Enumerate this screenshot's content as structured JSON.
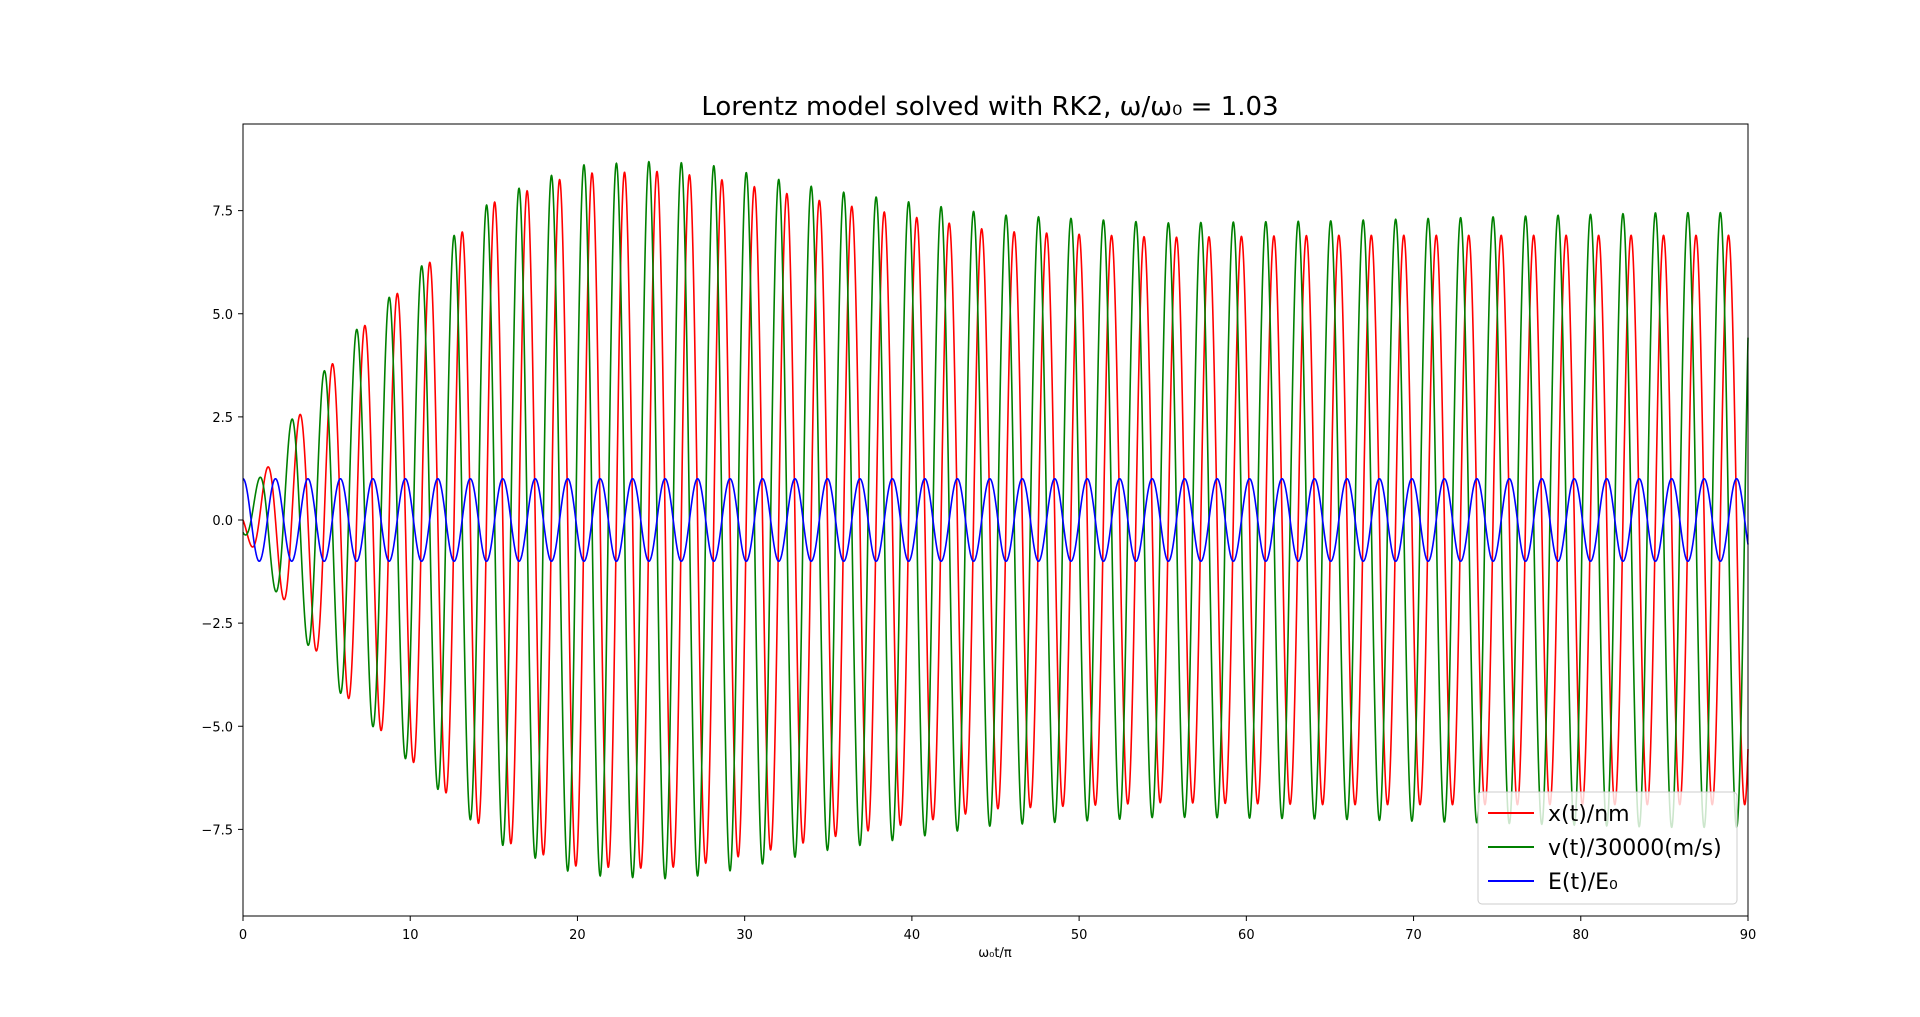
{
  "chart_data": {
    "type": "line",
    "title": "Lorentz model solved with RK2, ω/ω₀ = 1.03",
    "xlabel": "ω₀t/π",
    "ylabel": "",
    "xlim": [
      0,
      90
    ],
    "ylim": [
      -9.6,
      9.6
    ],
    "x_ticks": [
      0,
      10,
      20,
      30,
      40,
      50,
      60,
      70,
      80,
      90
    ],
    "x_tick_labels": [
      "0",
      "10",
      "20",
      "30",
      "40",
      "50",
      "60",
      "70",
      "80",
      "90"
    ],
    "y_ticks": [
      -7.5,
      -5.0,
      -2.5,
      0.0,
      2.5,
      5.0,
      7.5
    ],
    "y_tick_labels": [
      "−7.5",
      "−5.0",
      "−2.5",
      "0.0",
      "2.5",
      "5.0",
      "7.5"
    ],
    "grid": false,
    "legend_position": "lower-right",
    "series": [
      {
        "name": "x(t)/nm",
        "color": "#ff0000",
        "period": 1.9417,
        "envelope": [
          [
            0,
            0.3
          ],
          [
            3,
            2.3
          ],
          [
            6,
            4.2
          ],
          [
            10,
            5.8
          ],
          [
            15,
            7.7
          ],
          [
            20,
            8.4
          ],
          [
            25,
            8.45
          ],
          [
            28,
            8.3
          ],
          [
            35,
            7.7
          ],
          [
            45,
            7.0
          ],
          [
            55,
            6.85
          ],
          [
            65,
            6.9
          ],
          [
            75,
            6.9
          ],
          [
            85,
            6.9
          ],
          [
            90,
            6.9
          ]
        ]
      },
      {
        "name": "v(t)/30000(m/s)",
        "color": "#008000",
        "period": 1.9417,
        "envelope": [
          [
            0,
            0.3
          ],
          [
            3,
            2.5
          ],
          [
            6,
            4.3
          ],
          [
            10,
            5.9
          ],
          [
            15,
            7.8
          ],
          [
            20,
            8.6
          ],
          [
            25,
            8.7
          ],
          [
            28,
            8.6
          ],
          [
            35,
            8.0
          ],
          [
            45,
            7.4
          ],
          [
            55,
            7.2
          ],
          [
            65,
            7.25
          ],
          [
            75,
            7.35
          ],
          [
            85,
            7.45
          ],
          [
            90,
            7.45
          ]
        ]
      },
      {
        "name": "E(t)/E₀",
        "color": "#0000ff",
        "period": 1.9417,
        "amplitude": 1.0
      }
    ]
  }
}
